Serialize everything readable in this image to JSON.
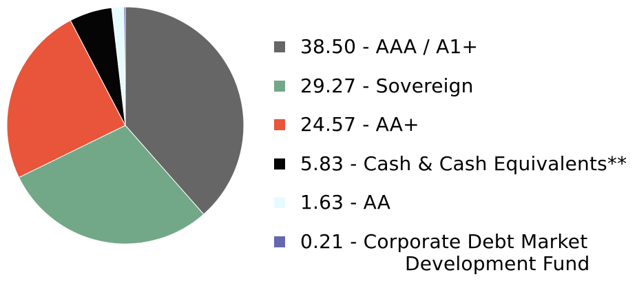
{
  "chart_data": {
    "type": "pie",
    "slices": [
      {
        "value": 38.5,
        "label": "AAA / A1+",
        "color": "#666666"
      },
      {
        "value": 29.27,
        "label": "Sovereign",
        "color": "#72a887"
      },
      {
        "value": 24.57,
        "label": "AA+",
        "color": "#e8553a"
      },
      {
        "value": 5.83,
        "label": "Cash & Cash Equivalents**",
        "color": "#050505"
      },
      {
        "value": 1.63,
        "label": "AA",
        "color": "#e6fbfd"
      },
      {
        "value": 0.21,
        "label": "Corporate Debt Market Development Fund",
        "color": "#6468b0"
      }
    ],
    "legend_placement": "right",
    "start_angle_deg": 0,
    "direction": "clockwise"
  },
  "legend": {
    "items": [
      {
        "text": "38.50 - AAA / A1+"
      },
      {
        "text": "29.27 - Sovereign"
      },
      {
        "text": "24.57 - AA+"
      },
      {
        "text": "5.83 - Cash & Cash Equivalents**"
      },
      {
        "text": "1.63 - AA"
      },
      {
        "text_line1": "0.21 - Corporate Debt Market",
        "text_line2": "Development Fund"
      }
    ]
  }
}
